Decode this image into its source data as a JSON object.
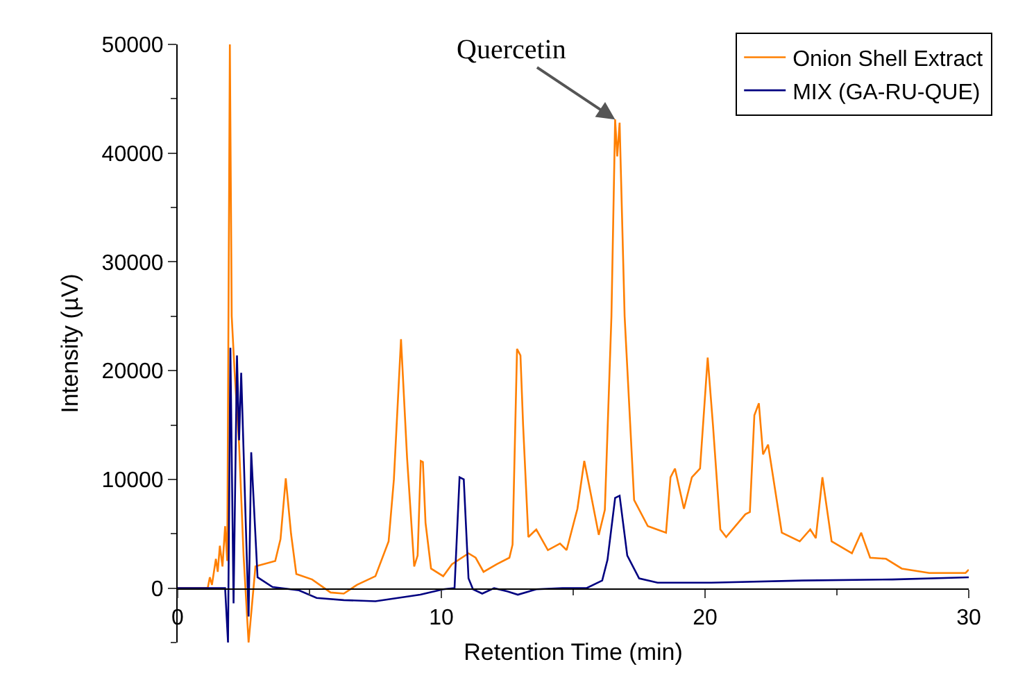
{
  "chart_data": {
    "type": "line",
    "xlabel": "Retention Time (min)",
    "ylabel": "Intensity (µV)",
    "xlim": [
      0,
      30
    ],
    "xticks": [
      0,
      10,
      20,
      30
    ],
    "ylim": [
      -5000,
      50000
    ],
    "yticks": [
      0,
      10000,
      20000,
      30000,
      40000,
      50000
    ],
    "legend": "top right",
    "annotations": [
      {
        "text": "Quercetin",
        "x": 16.59,
        "y": 43100
      }
    ],
    "series": [
      {
        "name": "Onion Shell Extract",
        "color": "#ff7f00",
        "x": [
          0,
          1.14,
          1.22,
          1.3,
          1.45,
          1.52,
          1.6,
          1.7,
          1.8,
          1.88,
          1.98,
          2.05,
          2.16,
          2.33,
          2.5,
          2.69,
          2.95,
          3.7,
          3.9,
          4.1,
          4.3,
          4.5,
          5.1,
          5.8,
          6.3,
          6.8,
          7.5,
          8.0,
          8.2,
          8.47,
          8.7,
          8.97,
          9.1,
          9.22,
          9.3,
          9.4,
          9.61,
          10.07,
          10.4,
          11.03,
          11.3,
          11.6,
          12.1,
          12.58,
          12.7,
          12.87,
          13.0,
          13.1,
          13.3,
          13.6,
          14.04,
          14.5,
          14.75,
          15.16,
          15.42,
          15.6,
          15.97,
          16.2,
          16.45,
          16.59,
          16.67,
          16.76,
          16.95,
          17.31,
          17.83,
          18.52,
          18.69,
          18.86,
          19.2,
          19.5,
          19.81,
          20.1,
          20.3,
          20.58,
          20.8,
          21.53,
          21.7,
          21.87,
          22.04,
          22.2,
          22.39,
          22.91,
          23.59,
          23.99,
          24.2,
          24.45,
          24.8,
          25.57,
          25.92,
          26.26,
          26.86,
          27.46,
          28.5,
          29.88,
          30
        ],
        "values": [
          0,
          0,
          1000,
          300,
          2700,
          1500,
          3900,
          2000,
          5700,
          2500,
          50000,
          25000,
          19900,
          13200,
          3000,
          -5000,
          2000,
          2500,
          4500,
          10100,
          5000,
          1300,
          800,
          -400,
          -500,
          300,
          1100,
          4300,
          10000,
          22900,
          12000,
          2000,
          3000,
          11700,
          11600,
          6000,
          1800,
          1100,
          2200,
          3200,
          2800,
          1500,
          2200,
          2800,
          4000,
          22000,
          21400,
          15000,
          4700,
          5400,
          3500,
          4100,
          3500,
          7300,
          11700,
          9500,
          4900,
          7200,
          25000,
          43100,
          39700,
          42800,
          25000,
          8100,
          5700,
          5100,
          10200,
          11000,
          7300,
          10200,
          11000,
          21200,
          15000,
          5400,
          4700,
          6800,
          7000,
          15900,
          17000,
          12300,
          13200,
          5100,
          4300,
          5400,
          4600,
          10200,
          4300,
          3200,
          5100,
          2800,
          2700,
          1800,
          1400,
          1400,
          1700
        ]
      },
      {
        "name": "MIX (GA-RU-QUE)",
        "color": "#000080",
        "x": [
          0,
          1.8,
          1.91,
          2.0,
          2.12,
          2.25,
          2.33,
          2.41,
          2.69,
          2.79,
          3.03,
          3.6,
          4.6,
          5.27,
          6.3,
          7.5,
          9.2,
          10.07,
          10.5,
          10.69,
          10.85,
          11.03,
          11.2,
          11.55,
          12.0,
          12.5,
          12.9,
          13.6,
          14.6,
          15.5,
          16.1,
          16.3,
          16.59,
          16.76,
          17.05,
          17.5,
          18.2,
          20.24,
          23.7,
          27.1,
          30
        ],
        "values": [
          0,
          0,
          -5000,
          22100,
          -1400,
          21400,
          13600,
          19800,
          -2600,
          12500,
          1000,
          100,
          -200,
          -900,
          -1100,
          -1200,
          -600,
          -100,
          0,
          10200,
          10000,
          900,
          -100,
          -500,
          0,
          -300,
          -600,
          -100,
          0,
          0,
          700,
          2600,
          8300,
          8500,
          3000,
          900,
          500,
          500,
          700,
          800,
          1000
        ]
      }
    ]
  }
}
